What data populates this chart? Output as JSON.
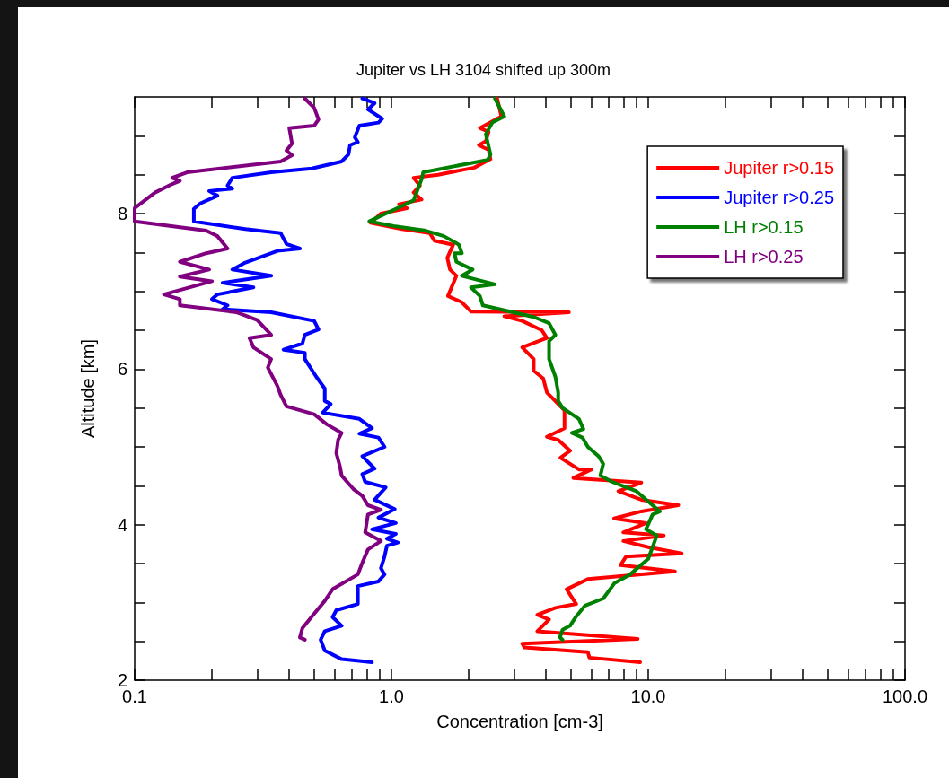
{
  "chart_data": {
    "type": "line",
    "title": "Jupiter vs LH 3104 shifted up 300m",
    "xlabel": "Concentration [cm-3]",
    "ylabel": "Altitude [km]",
    "log": "x",
    "legend": "top right",
    "marker": "none",
    "line_style": "solid",
    "xlim": [
      0.1,
      100
    ],
    "ylim": [
      2,
      9.5
    ],
    "xticks": [
      0.1,
      {
        "value": 0.2,
        "label": null
      },
      {
        "value": 0.3,
        "label": null
      },
      {
        "value": 0.4,
        "label": null
      },
      {
        "value": 0.5,
        "label": null
      },
      {
        "value": 0.6,
        "label": null
      },
      {
        "value": 0.7,
        "label": null
      },
      {
        "value": 0.8,
        "label": null
      },
      {
        "value": 0.9,
        "label": null
      },
      {
        "value": 1,
        "label": "1.0"
      },
      {
        "value": 2,
        "label": null
      },
      {
        "value": 3,
        "label": null
      },
      {
        "value": 4,
        "label": null
      },
      {
        "value": 5,
        "label": null
      },
      {
        "value": 6,
        "label": null
      },
      {
        "value": 7,
        "label": null
      },
      {
        "value": 8,
        "label": null
      },
      {
        "value": 9,
        "label": null
      },
      {
        "value": 10,
        "label": "10.0"
      },
      {
        "value": 20,
        "label": null
      },
      {
        "value": 30,
        "label": null
      },
      {
        "value": 40,
        "label": null
      },
      {
        "value": 50,
        "label": null
      },
      {
        "value": 60,
        "label": null
      },
      {
        "value": 70,
        "label": null
      },
      {
        "value": 80,
        "label": null
      },
      {
        "value": 90,
        "label": null
      },
      {
        "value": 100,
        "label": "100.0"
      }
    ],
    "yticks": [
      2,
      {
        "value": 2.5,
        "label": null
      },
      {
        "value": 3,
        "label": null
      },
      {
        "value": 3.5,
        "label": null
      },
      4,
      {
        "value": 4.5,
        "label": null
      },
      {
        "value": 5,
        "label": null
      },
      {
        "value": 5.5,
        "label": null
      },
      6,
      {
        "value": 6.5,
        "label": null
      },
      {
        "value": 7,
        "label": null
      },
      {
        "value": 7.5,
        "label": null
      },
      8,
      {
        "value": 8.5,
        "label": null
      },
      {
        "value": 9,
        "label": null
      }
    ],
    "series": [
      {
        "name": "Jupiter r>0.15",
        "color": "#ff0000",
        "x": [
          2.58,
          2.68,
          2.21,
          2.39,
          2.33,
          2.19,
          2.39,
          2.43,
          2.1,
          1.52,
          1.22,
          1.29,
          1.22,
          1.31,
          1.07,
          1.15,
          0.91,
          0.83,
          1.1,
          1.41,
          1.47,
          1.74,
          1.65,
          1.69,
          1.79,
          1.66,
          1.88,
          2.04,
          4.91,
          2.75,
          3.23,
          3.85,
          4.03,
          3.23,
          3.58,
          3.58,
          3.9,
          4.03,
          4.72,
          4.72,
          4.03,
          4.46,
          4.96,
          4.55,
          5.37,
          6.01,
          5.11,
          9.4,
          7.65,
          9.4,
          13.1,
          9.4,
          7.36,
          9.8,
          8.0,
          11.5,
          8.0,
          10.0,
          13.5,
          8.2,
          7.8,
          12.7,
          5.82,
          4.81,
          5.24,
          4.35,
          3.7,
          4.11,
          3.7,
          9.1,
          3.23,
          3.3,
          5.82,
          5.9,
          9.3
        ],
        "values": [
          9.48,
          9.25,
          9.1,
          9.05,
          8.93,
          8.88,
          8.82,
          8.7,
          8.59,
          8.5,
          8.46,
          8.36,
          8.27,
          8.18,
          8.12,
          8.07,
          8.0,
          7.88,
          7.8,
          7.75,
          7.65,
          7.6,
          7.43,
          7.28,
          7.2,
          6.94,
          6.86,
          6.74,
          6.73,
          6.68,
          6.62,
          6.5,
          6.4,
          6.28,
          6.13,
          5.98,
          5.88,
          5.7,
          5.47,
          5.24,
          5.13,
          5.09,
          4.95,
          4.86,
          4.71,
          4.71,
          4.6,
          4.54,
          4.43,
          4.32,
          4.25,
          4.17,
          4.08,
          4.02,
          3.9,
          3.86,
          3.79,
          3.71,
          3.63,
          3.59,
          3.48,
          3.4,
          3.3,
          3.17,
          2.98,
          2.93,
          2.84,
          2.78,
          2.63,
          2.53,
          2.47,
          2.42,
          2.36,
          2.29,
          2.23
        ]
      },
      {
        "name": "Jupiter r>0.25",
        "color": "#0000ff",
        "x": [
          0.77,
          0.86,
          0.81,
          0.92,
          0.89,
          0.75,
          0.72,
          0.74,
          0.69,
          0.68,
          0.64,
          0.49,
          0.34,
          0.24,
          0.23,
          0.24,
          0.195,
          0.21,
          0.18,
          0.17,
          0.17,
          0.27,
          0.37,
          0.39,
          0.44,
          0.36,
          0.27,
          0.24,
          0.34,
          0.22,
          0.29,
          0.21,
          0.2,
          0.23,
          0.22,
          0.34,
          0.5,
          0.52,
          0.46,
          0.45,
          0.38,
          0.46,
          0.46,
          0.51,
          0.55,
          0.55,
          0.58,
          0.54,
          0.75,
          0.84,
          0.75,
          0.89,
          0.94,
          0.77,
          0.86,
          0.77,
          0.79,
          0.95,
          0.86,
          1.03,
          0.89,
          1.04,
          0.84,
          1.04,
          0.96,
          1.06,
          0.96,
          0.94,
          0.91,
          0.94,
          0.89,
          0.74,
          0.74,
          0.61,
          0.59,
          0.64,
          0.55,
          0.53,
          0.55,
          0.64,
          0.84
        ],
        "values": [
          9.48,
          9.42,
          9.34,
          9.22,
          9.17,
          9.13,
          8.98,
          8.92,
          8.88,
          8.76,
          8.67,
          8.58,
          8.53,
          8.46,
          8.36,
          8.32,
          8.29,
          8.23,
          8.13,
          8.06,
          7.9,
          7.8,
          7.75,
          7.61,
          7.55,
          7.52,
          7.37,
          7.28,
          7.2,
          7.11,
          7.05,
          6.96,
          6.9,
          6.82,
          6.77,
          6.73,
          6.62,
          6.51,
          6.44,
          6.33,
          6.25,
          6.21,
          6.13,
          5.9,
          5.75,
          5.59,
          5.55,
          5.44,
          5.36,
          5.24,
          5.17,
          5.12,
          5.0,
          4.88,
          4.72,
          4.65,
          4.55,
          4.48,
          4.32,
          4.2,
          4.09,
          4.02,
          3.94,
          3.88,
          3.82,
          3.77,
          3.73,
          3.59,
          3.44,
          3.36,
          3.27,
          3.21,
          2.98,
          2.9,
          2.81,
          2.7,
          2.63,
          2.52,
          2.38,
          2.27,
          2.23
        ]
      },
      {
        "name": "LH r>0.15",
        "color": "#008000",
        "x": [
          2.53,
          2.75,
          2.47,
          2.33,
          2.43,
          2.37,
          2.04,
          1.33,
          1.31,
          1.22,
          1.04,
          0.82,
          1.02,
          1.36,
          1.6,
          1.83,
          1.88,
          1.76,
          1.79,
          2.07,
          1.88,
          2.53,
          2.04,
          2.21,
          2.27,
          2.9,
          3.58,
          4.11,
          4.35,
          4.11,
          4.11,
          4.35,
          4.46,
          4.46,
          4.64,
          5.37,
          5.59,
          5.04,
          5.54,
          5.82,
          6.41,
          6.68,
          6.51,
          7.24,
          9.0,
          11.1,
          10.4,
          9.8,
          10.8,
          10.0,
          8.5,
          7.4,
          6.68,
          5.68,
          5.24,
          4.96,
          4.64,
          4.53,
          4.64
        ],
        "values": [
          9.48,
          9.25,
          9.17,
          9.02,
          8.76,
          8.69,
          8.65,
          8.53,
          8.44,
          8.17,
          8.06,
          7.9,
          7.84,
          7.78,
          7.71,
          7.6,
          7.49,
          7.49,
          7.38,
          7.28,
          7.2,
          7.09,
          7.05,
          6.94,
          6.82,
          6.74,
          6.67,
          6.59,
          6.44,
          6.36,
          6.13,
          5.9,
          5.7,
          5.59,
          5.5,
          5.36,
          5.23,
          5.18,
          5.12,
          5.0,
          4.88,
          4.78,
          4.63,
          4.55,
          4.43,
          4.17,
          4.13,
          3.94,
          3.86,
          3.56,
          3.36,
          3.25,
          3.05,
          2.96,
          2.82,
          2.7,
          2.65,
          2.55,
          2.52
        ]
      },
      {
        "name": "LH r>0.25",
        "color": "#800080",
        "x": [
          0.46,
          0.5,
          0.52,
          0.5,
          0.4,
          0.41,
          0.39,
          0.41,
          0.37,
          0.16,
          0.14,
          0.15,
          0.14,
          0.12,
          0.1,
          0.1,
          0.1,
          0.19,
          0.21,
          0.23,
          0.19,
          0.15,
          0.195,
          0.15,
          0.2,
          0.13,
          0.15,
          0.15,
          0.25,
          0.3,
          0.34,
          0.28,
          0.29,
          0.34,
          0.33,
          0.36,
          0.37,
          0.39,
          0.5,
          0.56,
          0.64,
          0.62,
          0.61,
          0.63,
          0.64,
          0.71,
          0.77,
          0.81,
          0.91,
          0.81,
          0.79,
          0.91,
          0.81,
          0.77,
          0.74,
          0.59,
          0.55,
          0.49,
          0.45,
          0.44,
          0.46
        ],
        "values": [
          9.48,
          9.36,
          9.21,
          9.13,
          9.1,
          8.9,
          8.81,
          8.75,
          8.67,
          8.53,
          8.46,
          8.42,
          8.38,
          8.27,
          8.07,
          7.98,
          7.9,
          7.78,
          7.71,
          7.55,
          7.49,
          7.38,
          7.28,
          7.19,
          7.13,
          6.96,
          6.9,
          6.82,
          6.73,
          6.63,
          6.44,
          6.4,
          6.28,
          6.13,
          6.02,
          5.78,
          5.67,
          5.52,
          5.42,
          5.29,
          5.18,
          5.09,
          4.92,
          4.75,
          4.63,
          4.46,
          4.37,
          4.25,
          4.19,
          4.13,
          3.9,
          3.79,
          3.68,
          3.51,
          3.36,
          3.17,
          3.02,
          2.82,
          2.67,
          2.55,
          2.52
        ]
      }
    ]
  }
}
